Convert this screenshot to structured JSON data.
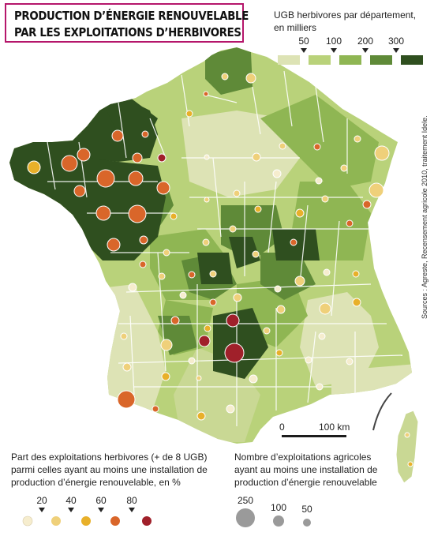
{
  "title": {
    "line1": "PRODUCTION D’ÉNERGIE RENOUVELABLE",
    "line2": "PAR LES EXPLOITATIONS D’HERBIVORES"
  },
  "ugb_legend": {
    "title_line1": "UGB herbivores par département,",
    "title_line2": "en milliers",
    "ticks": [
      "50",
      "100",
      "200",
      "300"
    ],
    "colors": [
      "#dde3b5",
      "#b9d27a",
      "#8fb653",
      "#5f8a38",
      "#2f4f1f"
    ]
  },
  "share_legend": {
    "line1": "Part des exploitations herbivores (+ de 8 UGB)",
    "line2": "parmi celles ayant au moins une installation de",
    "line3": "production d’énergie renouvelable, en %",
    "ticks": [
      "20",
      "40",
      "60",
      "80"
    ],
    "colors": [
      "#f6edce",
      "#efd07a",
      "#e8b02a",
      "#d9662a",
      "#a0202a"
    ]
  },
  "count_legend": {
    "line1": "Nombre d’exploitations agricoles",
    "line2": "ayant au moins une installation de",
    "line3": "production d’énergie renouvelable",
    "values": [
      "250",
      "100",
      "50"
    ]
  },
  "scale_bar": {
    "start": "0",
    "end": "100 km"
  },
  "source": "Sources : Agreste, Recensement agricole 2010, traitement Idele."
}
